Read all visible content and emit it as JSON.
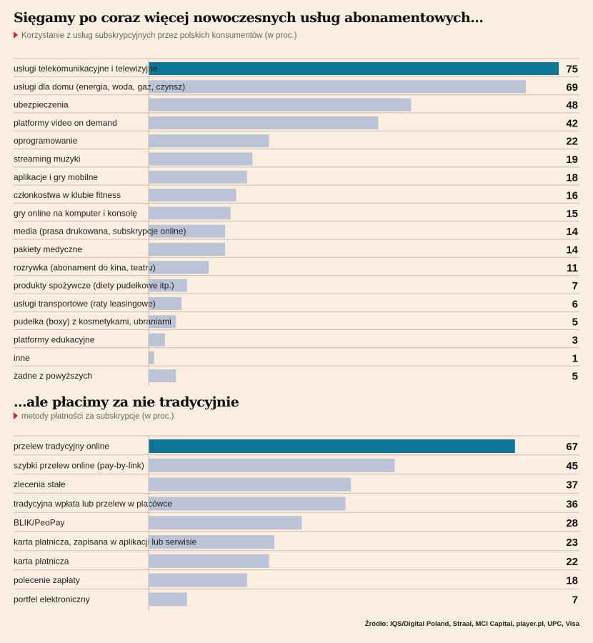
{
  "colors": {
    "background": "#faeee0",
    "highlight_bar": "#0e7597",
    "bar": "#bcc3d6",
    "grid": "#c9beb0",
    "marker": "#d9241b"
  },
  "icons": {
    "subtitle_marker": "red-triangle-icon"
  },
  "source": "Źródło: IQS/Digital Poland, Straal, MCI Capital, player.pl, UPC, Visa",
  "chart_data": [
    {
      "type": "bar",
      "orientation": "horizontal",
      "title": "Sięgamy po coraz więcej nowoczesnych usług abonamentowych...",
      "subtitle": "Korzystanie z usług subskrypcyjnych przez polskich konsumentów (w proc.)",
      "categories": [
        "usługi telekomunikacyjne i telewizyjne",
        "usługi dla domu (energia, woda, gaz, czynsz)",
        "ubezpieczenia",
        "platformy video on demand",
        "oprogramowanie",
        "streaming muzyki",
        "aplikacje i gry mobilne",
        "członkostwa w klubie fitness",
        "gry online na komputer i konsolę",
        "media (prasa drukowana, subskrypcje online)",
        "pakiety medyczne",
        "rozrywka (abonament do kina, teatru)",
        "produkty spożywcze (diety pudełkowe itp.)",
        "usługi transportowe (raty leasingowe)",
        "pudełka (boxy) z kosmetykami, ubraniami",
        "platformy edukacyjne",
        "inne",
        "żadne z powyższych"
      ],
      "values": [
        75,
        69,
        48,
        42,
        22,
        19,
        18,
        16,
        15,
        14,
        14,
        11,
        7,
        6,
        5,
        3,
        1,
        5
      ],
      "highlight_index": 0,
      "xlim": [
        0,
        75
      ],
      "grid": true
    },
    {
      "type": "bar",
      "orientation": "horizontal",
      "title": "...ale płacimy za nie tradycyjnie",
      "subtitle": "metody płatności za subskrypcje (w proc.)",
      "categories": [
        "przelew tradycyjny online",
        "szybki przelew online (pay-by-link)",
        "zlecenia stałe",
        "tradycyjna wpłata lub przelew w placówce",
        "BLIK/PeoPay",
        "karta płatnicza, zapisana w aplikacji lub serwisie",
        "karta płatnicza",
        "polecenie zapłaty",
        "portfel elektroniczny"
      ],
      "values": [
        67,
        45,
        37,
        36,
        28,
        23,
        22,
        18,
        7
      ],
      "highlight_index": 0,
      "xlim": [
        0,
        75
      ],
      "grid": true
    }
  ]
}
